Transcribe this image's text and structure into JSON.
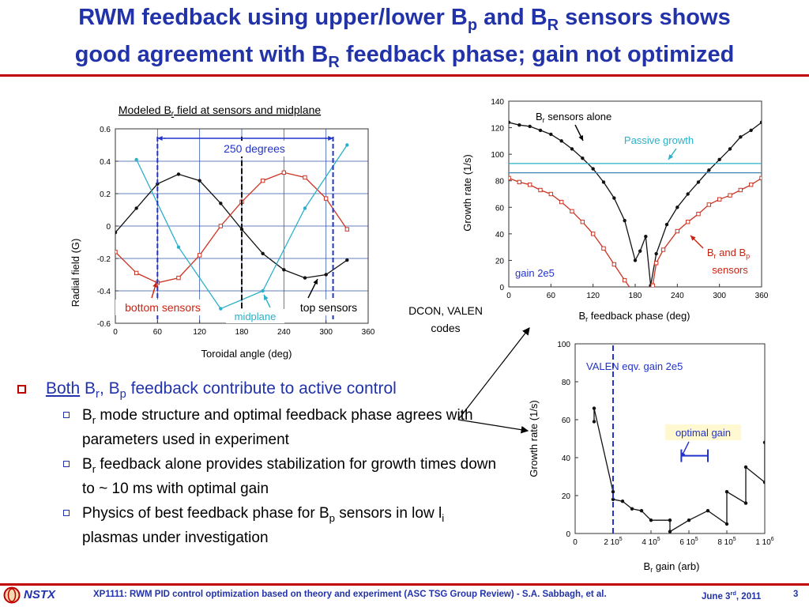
{
  "header": {
    "title_line1_a": "RWM feedback using upper/lower B",
    "title_line1_sub1": "p",
    "title_line1_b": " and B",
    "title_line1_sub2": "R",
    "title_line1_c": " sensors shows",
    "title_line2_a": "good agreement with B",
    "title_line2_sub": "R",
    "title_line2_b": " feedback phase; gain not optimized"
  },
  "chart_data": [
    {
      "type": "line",
      "title_a": "Modeled B",
      "title_sub": "r",
      "title_b": " field at sensors and midplane",
      "xlabel": "Toroidal angle (deg)",
      "ylabel": "Radial field (G)",
      "xlim": [
        0,
        360
      ],
      "ylim": [
        -0.6,
        0.6
      ],
      "xticks": [
        "0",
        "60",
        "120",
        "180",
        "240",
        "300",
        "360"
      ],
      "yticks": [
        "0.6",
        "0.4",
        "0.2",
        "0",
        "-0.2",
        "-0.4",
        "-0.6"
      ],
      "series": [
        {
          "color": "#111111",
          "marker": "dot",
          "x": [
            0,
            30,
            60,
            90,
            120,
            150,
            180,
            210,
            240,
            270,
            300,
            330
          ],
          "y": [
            -0.04,
            0.11,
            0.26,
            0.32,
            0.28,
            0.14,
            -0.02,
            -0.17,
            -0.27,
            -0.32,
            -0.3,
            -0.21
          ]
        },
        {
          "color": "#cc3322",
          "marker": "square",
          "x": [
            0,
            30,
            60,
            90,
            120,
            150,
            180,
            210,
            240,
            270,
            300,
            330
          ],
          "y": [
            -0.16,
            -0.29,
            -0.35,
            -0.32,
            -0.18,
            0.0,
            0.15,
            0.28,
            0.33,
            0.3,
            0.17,
            -0.02
          ]
        },
        {
          "color": "#2ab0c8",
          "marker": "dot",
          "x": [
            30,
            90,
            150,
            210,
            270,
            330
          ],
          "y": [
            0.41,
            -0.13,
            -0.51,
            -0.4,
            0.11,
            0.5
          ]
        }
      ],
      "annotations": {
        "span_label": "250 degrees",
        "bottom_sensors": "bottom sensors",
        "midplane": "midplane",
        "top_sensors": "top sensors"
      }
    },
    {
      "type": "line",
      "xlabel_a": "B",
      "xlabel_sub": "r",
      "xlabel_b": " feedback phase (deg)",
      "ylabel": "Growth rate (1/s)",
      "xlim": [
        0,
        360
      ],
      "ylim": [
        0,
        140
      ],
      "xticks": [
        "0",
        "60",
        "120",
        "180",
        "240",
        "300",
        "360"
      ],
      "yticks": [
        "140",
        "120",
        "100",
        "80",
        "60",
        "40",
        "20",
        "0"
      ],
      "series": [
        {
          "color": "#111111",
          "marker": "dot",
          "x": [
            0,
            15,
            30,
            45,
            60,
            75,
            90,
            105,
            120,
            135,
            150,
            165,
            180,
            187,
            195,
            202,
            210,
            225,
            240,
            255,
            270,
            285,
            300,
            315,
            330,
            345,
            360
          ],
          "y": [
            124,
            122,
            121,
            118,
            115,
            110,
            104,
            97,
            89,
            79,
            67,
            50,
            20,
            27,
            38,
            1,
            25,
            47,
            60,
            70,
            79,
            88,
            96,
            104,
            113,
            118,
            124
          ]
        },
        {
          "color": "#cc3322",
          "marker": "square",
          "x": [
            0,
            15,
            30,
            45,
            60,
            75,
            90,
            105,
            120,
            135,
            150,
            165,
            180,
            205,
            210,
            220,
            240,
            255,
            270,
            285,
            300,
            315,
            330,
            345,
            360
          ],
          "y": [
            82,
            79,
            77,
            73,
            70,
            64,
            57,
            49,
            40,
            29,
            17,
            5,
            -6,
            1,
            18,
            28,
            42,
            49,
            55,
            62,
            66,
            69,
            73,
            77,
            82
          ]
        },
        {
          "color": "#2ab0c8",
          "marker": "none",
          "x": [
            0,
            360
          ],
          "y": [
            93,
            93
          ]
        },
        {
          "color": "#3a86b0",
          "marker": "none",
          "x": [
            0,
            360
          ],
          "y": [
            86,
            86
          ]
        }
      ],
      "annotations": {
        "br_alone_a": "B",
        "br_alone_sub": "r",
        "br_alone_b": " sensors alone",
        "passive": "Passive growth",
        "br_bp_a": "B",
        "br_bp_sub1": "r",
        "br_bp_b": " and B",
        "br_bp_sub2": "p",
        "br_bp_c": "sensors",
        "gain": "gain 2e5"
      }
    },
    {
      "type": "line",
      "xlabel_a": "B",
      "xlabel_sub": "r",
      "xlabel_b": " gain (arb)",
      "ylabel": "Growth rate (1/s)",
      "xlim": [
        0,
        1000000
      ],
      "ylim": [
        0,
        100
      ],
      "xticks": [
        "0",
        "2 10",
        "4 10",
        "6 10",
        "8 10",
        "1 10"
      ],
      "xtick_exps": [
        "",
        "5",
        "5",
        "5",
        "5",
        "6"
      ],
      "yticks": [
        "100",
        "80",
        "60",
        "40",
        "20",
        "0"
      ],
      "series": [
        {
          "color": "#111111",
          "marker": "dot",
          "x": [
            100000,
            100000,
            200000,
            200000,
            250000,
            300000,
            350000,
            400000,
            500000,
            500000,
            600000,
            700000,
            800000,
            800000,
            900000,
            900000,
            1000000,
            1000000
          ],
          "y": [
            59,
            66,
            22,
            18,
            17,
            13,
            12,
            7,
            7,
            1,
            7,
            12,
            5,
            22,
            16,
            35,
            27,
            48
          ]
        }
      ],
      "annotations": {
        "valen": "VALEN eqv. gain 2e5",
        "optimal": "optimal gain"
      }
    }
  ],
  "side_labels": {
    "dcon_line1": "DCON, VALEN",
    "dcon_line2": "codes"
  },
  "bullets": {
    "main_u": "Both",
    "main_a": " B",
    "main_sub1": "r",
    "main_b": ", B",
    "main_sub2": "p",
    "main_c": " feedback contribute to active control",
    "sub1_a": "B",
    "sub1_sub": "r",
    "sub1_b": " mode structure and optimal feedback phase agrees with parameters used in experiment",
    "sub2_a": "B",
    "sub2_sub": "r",
    "sub2_b": " feedback alone provides stabilization for growth times down to ~ 10 ms with optimal gain",
    "sub3_a": "Physics of best feedback phase for B",
    "sub3_sub1": "p",
    "sub3_b": " sensors in low l",
    "sub3_sub2": "i",
    "sub3_c": " plasmas under investigation"
  },
  "footer": {
    "logo": "NSTX",
    "text": "XP1111: RWM PID control optimization based on theory and experiment (ASC TSG Group Review) - S.A. Sabbagh, et al.",
    "date_a": "June 3",
    "date_sup": "rd",
    "date_b": ", 2011",
    "page": "3"
  },
  "colors": {
    "title": "#2233aa",
    "rule": "#c00000",
    "black_series": "#111111",
    "red_series": "#cc3322",
    "cyan_series": "#2ab0c8",
    "dark_blue": "#2233aa"
  }
}
